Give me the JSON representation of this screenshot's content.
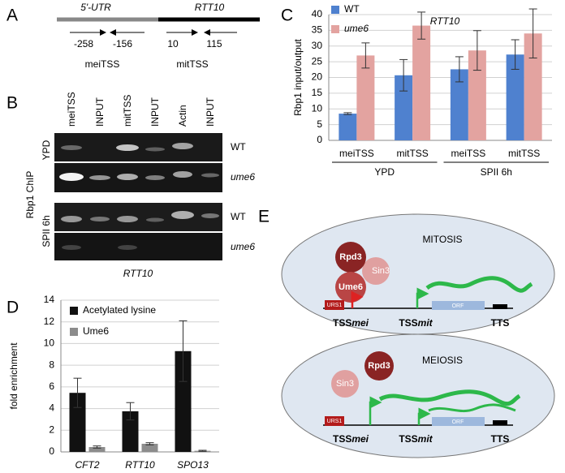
{
  "panel_labels": [
    "A",
    "B",
    "C",
    "D",
    "E"
  ],
  "panel_a": {
    "utr": "5'-UTR",
    "gene": "RTT10",
    "primers": [
      "-258",
      "-156",
      "10",
      "115"
    ],
    "regions": [
      "meiTSS",
      "mitTSS"
    ]
  },
  "panel_b": {
    "lanes": [
      "meiTSS",
      "INPUT",
      "mitTSS",
      "INPUT",
      "Actin",
      "INPUT"
    ],
    "rows": [
      "WT",
      "ume6",
      "WT",
      "ume6"
    ],
    "conditions": [
      "YPD",
      "SPII 6h"
    ],
    "axis_label": "Rbp1 ChIP",
    "gene": "RTT10"
  },
  "chart_data": [
    {
      "type": "bar",
      "title": "RTT10",
      "y_label": "Rbp1 input/output",
      "categories": [
        "meiTSS",
        "mitTSS",
        "meiTSS",
        "mitTSS"
      ],
      "groups": [
        "YPD",
        "SPII 6h"
      ],
      "series": [
        {
          "name": "WT",
          "color": "#4f81cf",
          "values": [
            8.5,
            20.7,
            22.6,
            27.3
          ],
          "errors": [
            0.3,
            5,
            4,
            4.7
          ]
        },
        {
          "name": "ume6",
          "color": "#e3a3a0",
          "values": [
            27,
            36.5,
            28.6,
            34
          ],
          "errors": [
            4,
            4.3,
            6.3,
            7.8
          ]
        }
      ],
      "ylim": [
        0,
        40
      ],
      "yticks": [
        0,
        5,
        10,
        15,
        20,
        25,
        30,
        35,
        40
      ],
      "grid": true
    },
    {
      "type": "bar",
      "y_label": "fold enrichment",
      "categories": [
        "CFT2",
        "RTT10",
        "SPO13"
      ],
      "series": [
        {
          "name": "Acetylated lysine",
          "color": "#111111",
          "values": [
            5.45,
            3.75,
            9.3
          ],
          "errors": [
            1.35,
            0.8,
            2.8
          ]
        },
        {
          "name": "Ume6",
          "color": "#8c8c8c",
          "values": [
            0.45,
            0.75,
            0.1
          ],
          "errors": [
            0.1,
            0.1,
            0.05
          ]
        }
      ],
      "ylim": [
        0,
        14
      ],
      "yticks": [
        0,
        2,
        4,
        6,
        8,
        10,
        12,
        14
      ],
      "grid": true
    }
  ],
  "panel_e": {
    "mitosis": {
      "title": "MITOSIS",
      "rpd3": "Rpd3",
      "sin3": "Sin3",
      "ume6": "Ume6",
      "urs1": "URS1",
      "orf": "ORF",
      "tss": "TSS",
      "mei": "mei",
      "mit": "mit",
      "tts": "TTS"
    },
    "meiosis": {
      "title": "MEIOSIS",
      "rpd3": "Rpd3",
      "sin3": "Sin3",
      "urs1": "URS1",
      "orf": "ORF",
      "tss": "TSS",
      "mei": "mei",
      "mit": "mit",
      "tts": "TTS"
    }
  }
}
